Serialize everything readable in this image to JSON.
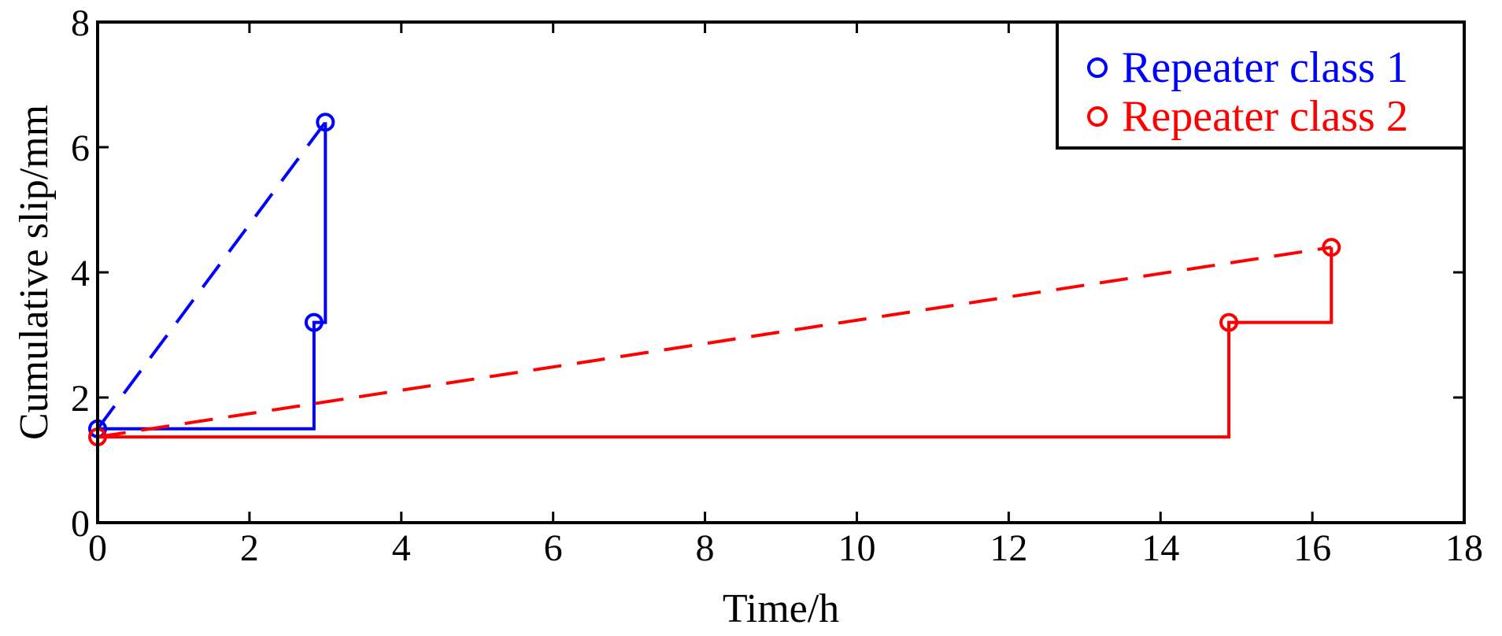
{
  "chart_data": {
    "type": "line",
    "xlabel": "Time/h",
    "ylabel": "Cumulative slip/mm",
    "xlim": [
      0,
      18
    ],
    "ylim": [
      0,
      8
    ],
    "xticks": [
      0,
      2,
      4,
      6,
      8,
      10,
      12,
      14,
      16,
      18
    ],
    "yticks": [
      0,
      2,
      4,
      6,
      8
    ],
    "grid": false,
    "legend_position": "top-right",
    "series": [
      {
        "name": "Repeater class 1",
        "color": "#0000ff",
        "events": [
          {
            "x": 0.0,
            "y": 1.5
          },
          {
            "x": 2.85,
            "y": 3.2
          },
          {
            "x": 3.0,
            "y": 6.4
          }
        ],
        "step": [
          {
            "x": 0.0,
            "y": 1.5
          },
          {
            "x": 2.85,
            "y": 1.5
          },
          {
            "x": 2.85,
            "y": 3.2
          },
          {
            "x": 3.0,
            "y": 3.2
          },
          {
            "x": 3.0,
            "y": 6.4
          }
        ],
        "trend": [
          {
            "x": 0.0,
            "y": 1.5
          },
          {
            "x": 3.0,
            "y": 6.4
          }
        ]
      },
      {
        "name": "Repeater class 2",
        "color": "#ff0000",
        "events": [
          {
            "x": 0.0,
            "y": 1.37
          },
          {
            "x": 14.9,
            "y": 3.2
          },
          {
            "x": 16.25,
            "y": 4.4
          }
        ],
        "step": [
          {
            "x": 0.0,
            "y": 1.37
          },
          {
            "x": 14.9,
            "y": 1.37
          },
          {
            "x": 14.9,
            "y": 3.2
          },
          {
            "x": 16.25,
            "y": 3.2
          },
          {
            "x": 16.25,
            "y": 4.4
          }
        ],
        "trend": [
          {
            "x": 0.0,
            "y": 1.37
          },
          {
            "x": 16.25,
            "y": 4.4
          }
        ]
      }
    ]
  }
}
